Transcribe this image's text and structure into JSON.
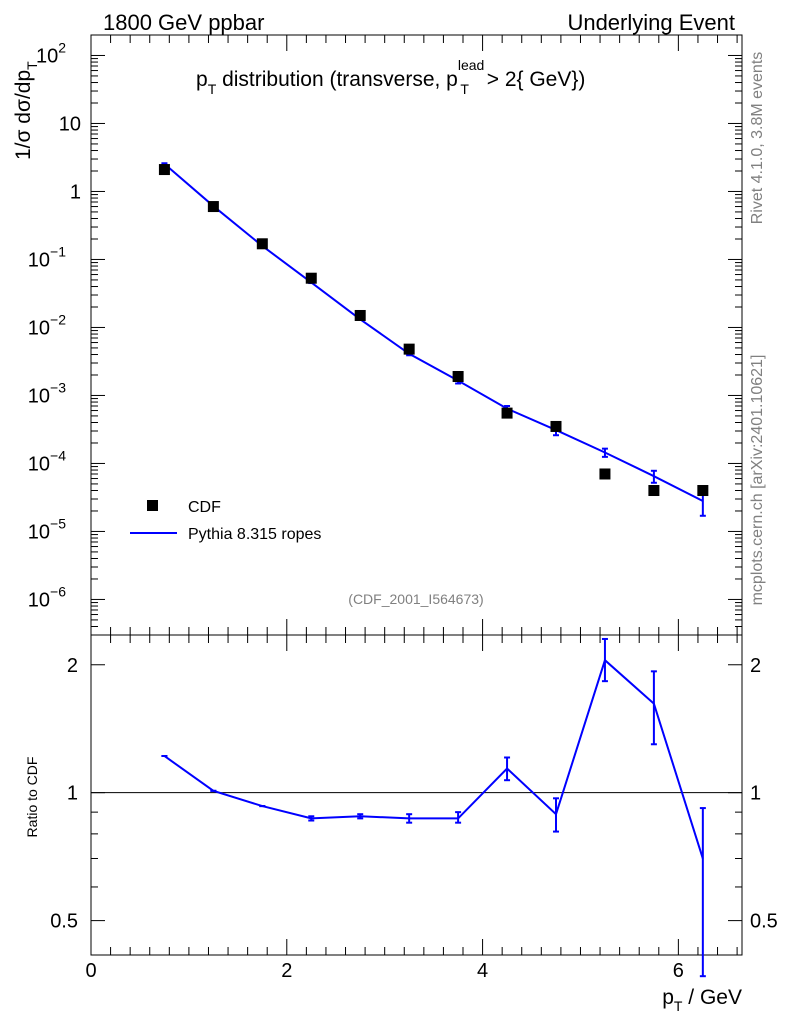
{
  "header": {
    "left": "1800 GeV ppbar",
    "right": "Underlying Event"
  },
  "side_labels": {
    "top": "Rivet 4.1.0,  3.8M events",
    "bottom": "mcplots.cern.ch [arXiv:2401.10621]"
  },
  "analysis_id": "(CDF_2001_I564673)",
  "colors": {
    "mc": "#0000ff",
    "data": "#000000",
    "grey": "#808080"
  },
  "chart_data": [
    {
      "type": "scatter",
      "title": "p_T distribution (transverse, p_T^lead > 2{ GeV})",
      "title_parts": {
        "p": "p",
        "sub_t": "T",
        "middle": " distribution (transverse, p",
        "sup": "lead",
        "sub_t2": "T",
        "end": " > 2{ GeV})"
      },
      "ylabel": "1/σ  dσ/dp_T",
      "ylabel_parts": {
        "main": "1/σ  dσ/dp",
        "sub": "T"
      },
      "xlabel": "p_T / GeV",
      "xlim": [
        0,
        6.65
      ],
      "ylim": [
        3e-07,
        200
      ],
      "yscale": "log",
      "y_ticks": [
        {
          "v": 100,
          "mant": "10",
          "exp": "2"
        },
        {
          "v": 10,
          "mant": "10",
          "exp": ""
        },
        {
          "v": 1,
          "mant": "1",
          "exp": ""
        },
        {
          "v": 0.1,
          "mant": "10",
          "exp": "−1"
        },
        {
          "v": 0.01,
          "mant": "10",
          "exp": "−2"
        },
        {
          "v": 0.001,
          "mant": "10",
          "exp": "−3"
        },
        {
          "v": 0.0001,
          "mant": "10",
          "exp": "−4"
        },
        {
          "v": 1e-05,
          "mant": "10",
          "exp": "−5"
        },
        {
          "v": 1e-06,
          "mant": "10",
          "exp": "−6"
        }
      ],
      "legend": [
        {
          "name": "CDF",
          "style": "marker"
        },
        {
          "name": "Pythia 8.315 ropes",
          "style": "line"
        }
      ],
      "series": [
        {
          "name": "CDF",
          "x": [
            0.75,
            1.25,
            1.75,
            2.25,
            2.75,
            3.25,
            3.75,
            4.25,
            4.75,
            5.25,
            5.75,
            6.25
          ],
          "values": [
            2.1,
            0.6,
            0.17,
            0.053,
            0.015,
            0.0048,
            0.0019,
            0.00055,
            0.00035,
            7e-05,
            4e-05,
            4e-05
          ]
        },
        {
          "name": "Pythia 8.315 ropes",
          "x": [
            0.75,
            1.25,
            1.75,
            2.25,
            2.75,
            3.25,
            3.75,
            4.25,
            4.75,
            5.25,
            5.75,
            6.25
          ],
          "values": [
            2.55,
            0.61,
            0.158,
            0.046,
            0.0132,
            0.0041,
            0.00165,
            0.00064,
            0.00031,
            0.000145,
            6.5e-05,
            2.8e-05
          ],
          "err_lo": [
            2.5,
            0.6,
            0.156,
            0.045,
            0.013,
            0.0039,
            0.0015,
            0.00058,
            0.00026,
            0.000125,
            5.2e-05,
            1.7e-05
          ],
          "err_hi": [
            2.6,
            0.62,
            0.16,
            0.047,
            0.0134,
            0.0043,
            0.0018,
            0.0007,
            0.00036,
            0.000165,
            7.8e-05,
            3.6e-05
          ]
        }
      ]
    },
    {
      "type": "line",
      "title": "",
      "ylabel": "Ratio to CDF",
      "xlabel": "p_T / GeV",
      "xlim": [
        0,
        6.65
      ],
      "ylim": [
        0.415,
        2.35
      ],
      "yscale": "log",
      "reference": 1,
      "x_ticks": [
        0,
        2,
        4,
        6
      ],
      "y_ticks": [
        0.5,
        1,
        2
      ],
      "series": [
        {
          "name": "Pythia 8.315 ropes / CDF",
          "x": [
            0.75,
            1.25,
            1.75,
            2.25,
            2.75,
            3.25,
            3.75,
            4.25,
            4.75,
            5.25,
            5.75,
            6.25
          ],
          "values": [
            1.22,
            1.01,
            0.93,
            0.87,
            0.88,
            0.87,
            0.87,
            1.14,
            0.89,
            2.05,
            1.62,
            0.7
          ],
          "err_lo": [
            1.22,
            1.01,
            0.93,
            0.86,
            0.87,
            0.85,
            0.85,
            1.07,
            0.81,
            1.83,
            1.3,
            0.37
          ],
          "err_hi": [
            1.22,
            1.01,
            0.93,
            0.88,
            0.89,
            0.89,
            0.9,
            1.21,
            0.97,
            2.3,
            1.93,
            0.92
          ]
        }
      ]
    }
  ]
}
